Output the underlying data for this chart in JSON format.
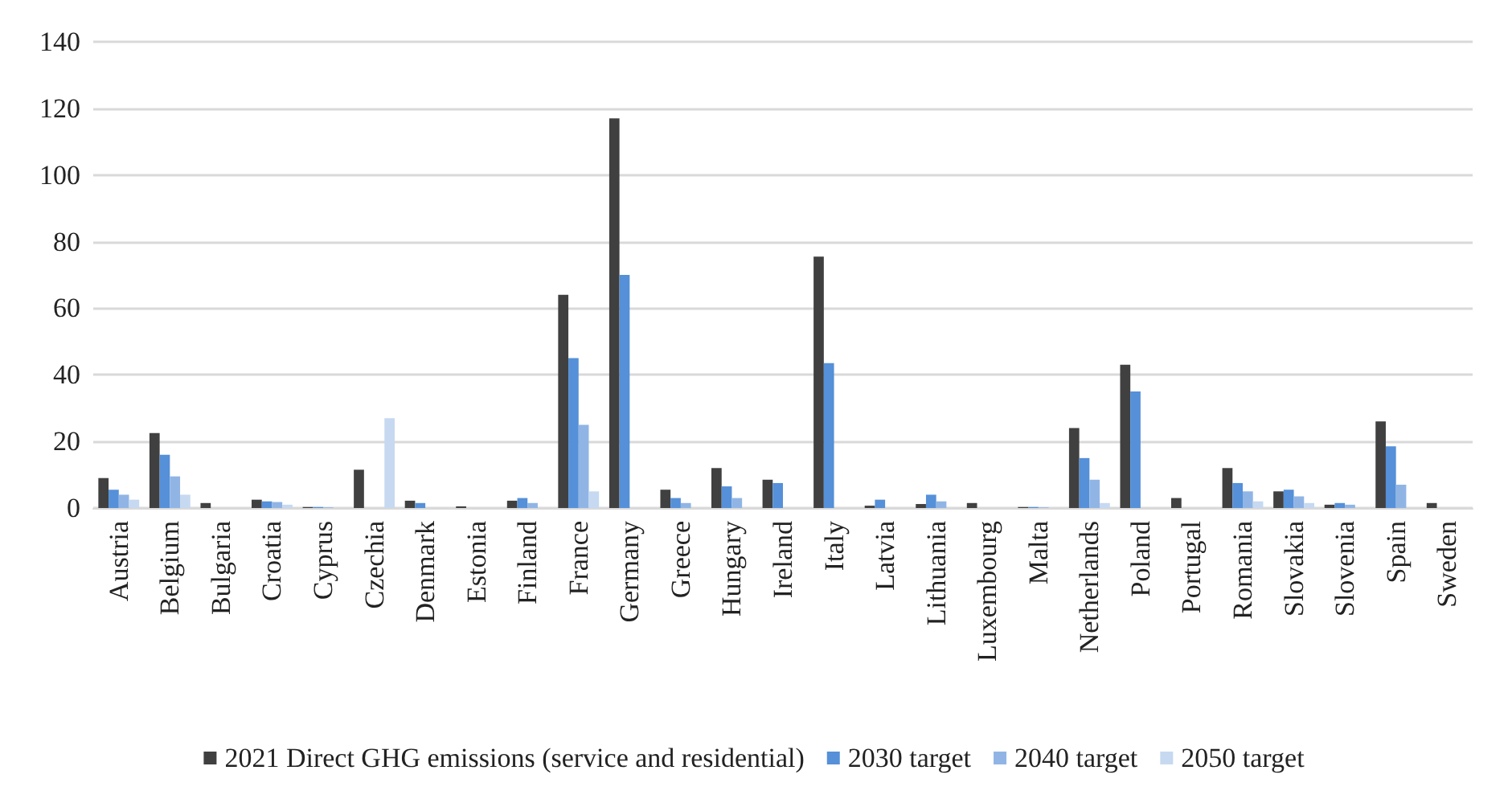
{
  "chart_data": {
    "type": "bar",
    "categories": [
      "Austria",
      "Belgium",
      "Bulgaria",
      "Croatia",
      "Cyprus",
      "Czechia",
      "Denmark",
      "Estonia",
      "Finland",
      "France",
      "Germany",
      "Greece",
      "Hungary",
      "Ireland",
      "Italy",
      "Latvia",
      "Lithuania",
      "Luxembourg",
      "Malta",
      "Netherlands",
      "Poland",
      "Portugal",
      "Romania",
      "Slovakia",
      "Slovenia",
      "Spain",
      "Sweden"
    ],
    "series": [
      {
        "name": "2021 Direct GHG emissions (service and residential)",
        "color": "#404040",
        "values": [
          9,
          22.5,
          1.5,
          2.5,
          0.3,
          11.5,
          2.2,
          0.5,
          2.2,
          64,
          117,
          5.5,
          12,
          8.5,
          75.5,
          0.7,
          1.2,
          1.5,
          0.3,
          24,
          43,
          3,
          12,
          5,
          1,
          26,
          1.5
        ]
      },
      {
        "name": "2030 target",
        "color": "#5590d8",
        "values": [
          5.5,
          16,
          0,
          2,
          0.3,
          0,
          1.5,
          0,
          3,
          45,
          70,
          3,
          6.5,
          7.5,
          43.5,
          2.5,
          4,
          0,
          0.3,
          15,
          35,
          0,
          7.5,
          5.5,
          1.5,
          18.5,
          0
        ]
      },
      {
        "name": "2040 target",
        "color": "#90b5e5",
        "values": [
          4,
          9.5,
          0,
          1.8,
          0.2,
          0,
          0,
          0,
          1.5,
          25,
          0,
          1.5,
          3,
          0,
          0,
          0,
          2,
          0,
          0.2,
          8.5,
          0,
          0,
          5,
          3.5,
          1,
          7,
          0
        ]
      },
      {
        "name": "2050 target",
        "color": "#c6d9f1",
        "values": [
          2.5,
          4,
          0,
          1,
          null,
          27,
          0,
          null,
          0,
          5,
          0,
          0,
          null,
          0,
          0,
          0,
          0,
          0,
          null,
          1.5,
          0,
          0,
          2,
          1.5,
          null,
          0,
          0
        ]
      }
    ],
    "ylim": [
      0,
      140
    ],
    "yticks": [
      0,
      20,
      40,
      60,
      80,
      100,
      120,
      140
    ],
    "grid": "y",
    "legend": "bottom"
  }
}
